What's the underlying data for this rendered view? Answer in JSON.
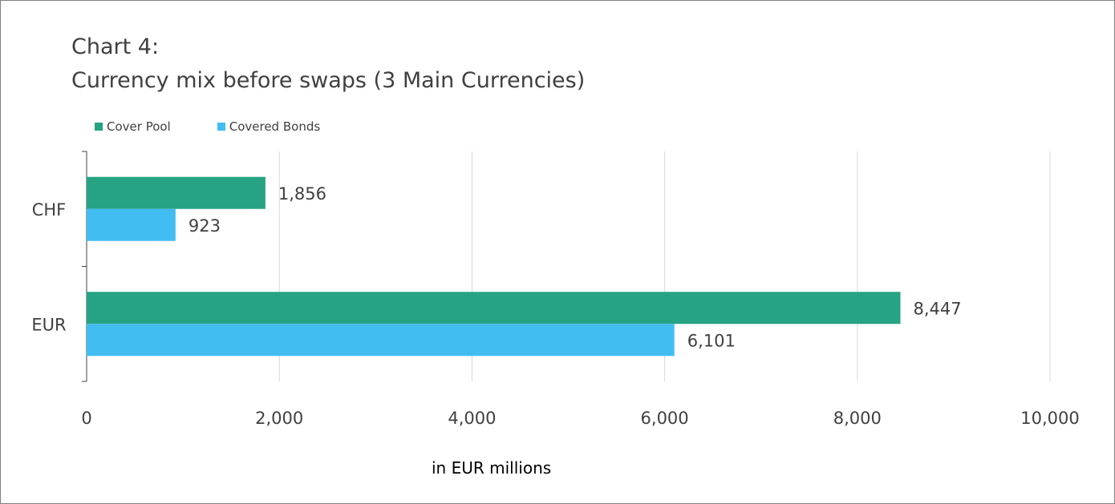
{
  "title_line1": "Chart 4:",
  "title_line2": "Currency mix before swaps (3 Main Currencies)",
  "chart_data": {
    "type": "bar",
    "orientation": "horizontal",
    "categories": [
      "CHF",
      "EUR"
    ],
    "series": [
      {
        "name": "Cover Pool",
        "values": [
          1856,
          8447
        ],
        "labels": [
          "1,856",
          "8,447"
        ],
        "color": "#26a383"
      },
      {
        "name": "Covered Bonds",
        "values": [
          923,
          6101
        ],
        "labels": [
          "923",
          "6,101"
        ],
        "color": "#42bdf2"
      }
    ],
    "xlabel": "in EUR millions",
    "xlim": [
      0,
      10000
    ],
    "xticks": [
      0,
      2000,
      4000,
      6000,
      8000,
      10000
    ],
    "xtick_labels": [
      "0",
      "2,000",
      "4,000",
      "6,000",
      "8,000",
      "10,000"
    ],
    "grid": "vertical",
    "legend": "top-left"
  }
}
